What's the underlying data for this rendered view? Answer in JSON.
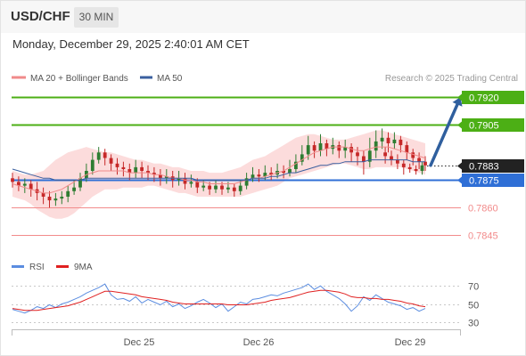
{
  "header": {
    "symbol": "USD/CHF",
    "interval": "30 MIN",
    "datetime": "Monday, December 29, 2025 2:40:01 AM CET"
  },
  "legend": {
    "bollinger": "MA 20 + Bollinger Bands",
    "ma50": "MA 50",
    "copyright": "Research © 2025 Trading Central",
    "rsi": "RSI",
    "ma9": "9MA"
  },
  "colors": {
    "up": "#2e7d32",
    "down": "#c62828",
    "bollinger_fill": "#fbd0d0",
    "ma20": "#f08a8a",
    "ma50": "#3a5f9f",
    "resistance": "#4caf15",
    "support": "#f28b8b",
    "pivot": "#2f6fd6",
    "last_price": "#222222",
    "arrow": "#2f5f9e",
    "rsi": "#5b8de0",
    "rsi_ma": "#e02020"
  },
  "chart_data": [
    {
      "type": "candlestick",
      "title": "USD/CHF",
      "ylim": [
        0.7837,
        0.7924
      ],
      "x_ticks": [
        "Dec 25",
        "Dec 26",
        "Dec 29"
      ],
      "levels": [
        {
          "value": "0.7920",
          "kind": "resistance"
        },
        {
          "value": "0.7905",
          "kind": "resistance"
        },
        {
          "value": "0.7883",
          "kind": "last"
        },
        {
          "value": "0.7875",
          "kind": "pivot"
        },
        {
          "value": "0.7860",
          "kind": "support"
        },
        {
          "value": "0.7845",
          "kind": "support"
        }
      ],
      "candles": [
        [
          0.7876,
          0.7874,
          0.7879,
          0.7871
        ],
        [
          0.7874,
          0.7872,
          0.7877,
          0.7869
        ],
        [
          0.7872,
          0.7873,
          0.7876,
          0.7868
        ],
        [
          0.7873,
          0.787,
          0.7875,
          0.7866
        ],
        [
          0.787,
          0.7868,
          0.7874,
          0.7864
        ],
        [
          0.7868,
          0.7866,
          0.7871,
          0.7862
        ],
        [
          0.7866,
          0.7864,
          0.7869,
          0.786
        ],
        [
          0.7864,
          0.7865,
          0.7868,
          0.7861
        ],
        [
          0.7865,
          0.7866,
          0.7869,
          0.7862
        ],
        [
          0.7866,
          0.7869,
          0.7872,
          0.7863
        ],
        [
          0.7869,
          0.7871,
          0.7875,
          0.7867
        ],
        [
          0.7871,
          0.7876,
          0.7879,
          0.7869
        ],
        [
          0.7876,
          0.788,
          0.7884,
          0.7874
        ],
        [
          0.788,
          0.7886,
          0.789,
          0.7878
        ],
        [
          0.7886,
          0.789,
          0.7893,
          0.7884
        ],
        [
          0.789,
          0.7887,
          0.7892,
          0.7883
        ],
        [
          0.7887,
          0.7884,
          0.7889,
          0.788
        ],
        [
          0.7884,
          0.7882,
          0.7887,
          0.7878
        ],
        [
          0.7882,
          0.7881,
          0.7885,
          0.7877
        ],
        [
          0.7881,
          0.7879,
          0.7884,
          0.7875
        ],
        [
          0.7879,
          0.7882,
          0.7886,
          0.7876
        ],
        [
          0.7882,
          0.788,
          0.7885,
          0.7876
        ],
        [
          0.788,
          0.7879,
          0.7883,
          0.7875
        ],
        [
          0.7879,
          0.7878,
          0.7882,
          0.7874
        ],
        [
          0.7878,
          0.7876,
          0.7881,
          0.7872
        ],
        [
          0.7876,
          0.7877,
          0.7881,
          0.7873
        ],
        [
          0.7877,
          0.7875,
          0.788,
          0.7871
        ],
        [
          0.7875,
          0.7876,
          0.788,
          0.7872
        ],
        [
          0.7876,
          0.7873,
          0.7879,
          0.787
        ],
        [
          0.7873,
          0.7874,
          0.7878,
          0.7871
        ],
        [
          0.7874,
          0.7871,
          0.7876,
          0.7868
        ],
        [
          0.7871,
          0.7872,
          0.7875,
          0.7869
        ],
        [
          0.7872,
          0.787,
          0.7874,
          0.7867
        ],
        [
          0.787,
          0.7872,
          0.7875,
          0.7868
        ],
        [
          0.7872,
          0.787,
          0.7874,
          0.7867
        ],
        [
          0.787,
          0.7871,
          0.7874,
          0.7868
        ],
        [
          0.7871,
          0.7869,
          0.7873,
          0.7866
        ],
        [
          0.7869,
          0.7872,
          0.7875,
          0.7867
        ],
        [
          0.7872,
          0.7876,
          0.7879,
          0.787
        ],
        [
          0.7876,
          0.7878,
          0.7882,
          0.7874
        ],
        [
          0.7878,
          0.7877,
          0.7881,
          0.7874
        ],
        [
          0.7877,
          0.7879,
          0.7883,
          0.7875
        ],
        [
          0.7879,
          0.7878,
          0.7882,
          0.7875
        ],
        [
          0.7878,
          0.788,
          0.7884,
          0.7876
        ],
        [
          0.788,
          0.7879,
          0.7883,
          0.7876
        ],
        [
          0.7879,
          0.7881,
          0.7886,
          0.7877
        ],
        [
          0.7881,
          0.7885,
          0.7889,
          0.7879
        ],
        [
          0.7885,
          0.7889,
          0.7894,
          0.7883
        ],
        [
          0.7889,
          0.7894,
          0.7899,
          0.7886
        ],
        [
          0.7894,
          0.7891,
          0.7896,
          0.7887
        ],
        [
          0.7891,
          0.7895,
          0.79,
          0.7888
        ],
        [
          0.7895,
          0.7892,
          0.7897,
          0.7888
        ],
        [
          0.7892,
          0.7894,
          0.7898,
          0.7889
        ],
        [
          0.7894,
          0.7891,
          0.7896,
          0.7887
        ],
        [
          0.7891,
          0.7893,
          0.7897,
          0.7887
        ],
        [
          0.7893,
          0.789,
          0.7895,
          0.7885
        ],
        [
          0.789,
          0.7888,
          0.7893,
          0.7883
        ],
        [
          0.7888,
          0.7885,
          0.7891,
          0.7878
        ],
        [
          0.7885,
          0.7891,
          0.7898,
          0.7882
        ],
        [
          0.7891,
          0.7896,
          0.7902,
          0.7887
        ],
        [
          0.7896,
          0.7898,
          0.7903,
          0.7892
        ],
        [
          0.7898,
          0.7895,
          0.7901,
          0.789
        ],
        [
          0.7895,
          0.7897,
          0.7901,
          0.7892
        ],
        [
          0.7897,
          0.7894,
          0.7899,
          0.789
        ],
        [
          0.7894,
          0.789,
          0.7896,
          0.7886
        ],
        [
          0.789,
          0.7887,
          0.7892,
          0.7883
        ],
        [
          0.7887,
          0.7885,
          0.789,
          0.7881
        ],
        [
          0.7885,
          0.7883,
          0.7888,
          0.788
        ]
      ],
      "extra_candles": [
        [
          0.789,
          0.7888,
          0.7893,
          0.7884
        ],
        [
          0.7888,
          0.7886,
          0.7891,
          0.7883
        ],
        [
          0.7886,
          0.7884,
          0.7889,
          0.7881
        ],
        [
          0.7884,
          0.7882,
          0.7886,
          0.7878
        ],
        [
          0.7882,
          0.7881,
          0.7884,
          0.7879
        ],
        [
          0.7881,
          0.788,
          0.7883,
          0.7878
        ],
        [
          0.788,
          0.7883,
          0.7885,
          0.7878
        ]
      ],
      "ma20": [
        0.7873,
        0.7872,
        0.7871,
        0.787,
        0.7869,
        0.7868,
        0.7868,
        0.7869,
        0.787,
        0.7872,
        0.7874,
        0.7876,
        0.7878,
        0.7879,
        0.788,
        0.788,
        0.788,
        0.788,
        0.788,
        0.7879,
        0.7879,
        0.7879,
        0.7879,
        0.7878,
        0.7878,
        0.7877,
        0.7876,
        0.7876,
        0.7875,
        0.7875,
        0.7874,
        0.7874,
        0.7873,
        0.7873,
        0.7873,
        0.7873,
        0.7873,
        0.7874,
        0.7875,
        0.7876,
        0.7876,
        0.7877,
        0.7878,
        0.7879,
        0.788,
        0.7882,
        0.7884,
        0.7886,
        0.7888,
        0.789,
        0.7891,
        0.7892,
        0.7893,
        0.7893,
        0.7893,
        0.7892,
        0.7891,
        0.7891,
        0.7892,
        0.7893,
        0.7893,
        0.7893,
        0.7892,
        0.7891,
        0.789,
        0.7889,
        0.7888,
        0.7887
      ],
      "band_upper": [
        0.788,
        0.7879,
        0.7878,
        0.7878,
        0.7879,
        0.788,
        0.7883,
        0.7886,
        0.7888,
        0.789,
        0.7891,
        0.7892,
        0.7893,
        0.7892,
        0.7891,
        0.789,
        0.789,
        0.7889,
        0.7888,
        0.7887,
        0.7886,
        0.7886,
        0.7885,
        0.7884,
        0.7884,
        0.7883,
        0.7882,
        0.7882,
        0.7881,
        0.788,
        0.788,
        0.788,
        0.7879,
        0.7879,
        0.7879,
        0.788,
        0.7881,
        0.7882,
        0.7884,
        0.7886,
        0.7887,
        0.7888,
        0.789,
        0.7892,
        0.7894,
        0.7896,
        0.7898,
        0.7899,
        0.79,
        0.79,
        0.7899,
        0.7898,
        0.7897,
        0.7897,
        0.7897,
        0.7898,
        0.7899,
        0.79,
        0.7901,
        0.7902,
        0.7902,
        0.7901,
        0.79,
        0.7899,
        0.7898,
        0.7897,
        0.7896,
        0.7895
      ],
      "band_lower": [
        0.7866,
        0.7865,
        0.7864,
        0.7862,
        0.7859,
        0.7857,
        0.7855,
        0.7854,
        0.7854,
        0.7855,
        0.7857,
        0.786,
        0.7863,
        0.7866,
        0.7868,
        0.787,
        0.787,
        0.787,
        0.7871,
        0.7871,
        0.7871,
        0.7871,
        0.7872,
        0.7872,
        0.7871,
        0.787,
        0.7869,
        0.7868,
        0.7868,
        0.7867,
        0.7866,
        0.7866,
        0.7866,
        0.7866,
        0.7866,
        0.7866,
        0.7866,
        0.7866,
        0.7867,
        0.7868,
        0.7869,
        0.787,
        0.7871,
        0.7872,
        0.7874,
        0.7876,
        0.7877,
        0.7878,
        0.7879,
        0.788,
        0.7881,
        0.7882,
        0.7883,
        0.7884,
        0.7884,
        0.7883,
        0.7882,
        0.7881,
        0.7881,
        0.7882,
        0.7882,
        0.7882,
        0.7882,
        0.7882,
        0.7881,
        0.788,
        0.7879,
        0.7878
      ],
      "ma50": [
        0.7881,
        0.788,
        0.7879,
        0.7878,
        0.7877,
        0.7876,
        0.7876,
        0.7875,
        0.7875,
        0.7875,
        0.7875,
        0.7875,
        0.7876,
        0.7876,
        0.7876,
        0.7876,
        0.7876,
        0.7876,
        0.7876,
        0.7876,
        0.7876,
        0.7876,
        0.7876,
        0.7876,
        0.7876,
        0.7876,
        0.7876,
        0.7876,
        0.7876,
        0.7876,
        0.7875,
        0.7875,
        0.7875,
        0.7875,
        0.7875,
        0.7875,
        0.7875,
        0.7875,
        0.7875,
        0.7876,
        0.7876,
        0.7876,
        0.7877,
        0.7877,
        0.7878,
        0.7879,
        0.7879,
        0.788,
        0.7881,
        0.7882,
        0.7883,
        0.7883,
        0.7884,
        0.7884,
        0.7885,
        0.7885,
        0.7885,
        0.7885,
        0.7886,
        0.7886,
        0.7886,
        0.7886,
        0.7886,
        0.7886,
        0.7886,
        0.7885,
        0.7885,
        0.7885
      ],
      "arrow": {
        "from": 0.7883,
        "to": 0.792
      }
    },
    {
      "type": "line",
      "title": "",
      "ylim": [
        25,
        78
      ],
      "y_ticks": [
        70,
        50,
        30
      ],
      "series": [
        {
          "name": "RSI",
          "values": [
            44,
            42,
            40,
            43,
            47,
            45,
            49,
            46,
            50,
            52,
            55,
            58,
            62,
            65,
            68,
            72,
            60,
            55,
            56,
            53,
            58,
            51,
            55,
            52,
            49,
            53,
            47,
            50,
            45,
            48,
            52,
            55,
            51,
            46,
            50,
            42,
            47,
            52,
            50,
            55,
            56,
            58,
            60,
            59,
            62,
            64,
            66,
            68,
            72,
            66,
            70,
            64,
            60,
            56,
            50,
            42,
            48,
            58,
            54,
            60,
            56,
            52,
            50,
            48,
            44,
            46,
            42,
            45
          ]
        },
        {
          "name": "9MA",
          "values": [
            45,
            44,
            43,
            43,
            43,
            44,
            45,
            46,
            47,
            48,
            50,
            52,
            55,
            58,
            61,
            64,
            64,
            63,
            62,
            61,
            60,
            58,
            57,
            56,
            55,
            54,
            52,
            51,
            50,
            50,
            50,
            50,
            50,
            50,
            50,
            49,
            49,
            49,
            49,
            50,
            51,
            52,
            54,
            55,
            56,
            57,
            59,
            61,
            63,
            64,
            65,
            65,
            64,
            63,
            61,
            58,
            57,
            57,
            56,
            56,
            55,
            55,
            54,
            53,
            51,
            50,
            48,
            47
          ]
        }
      ]
    }
  ]
}
